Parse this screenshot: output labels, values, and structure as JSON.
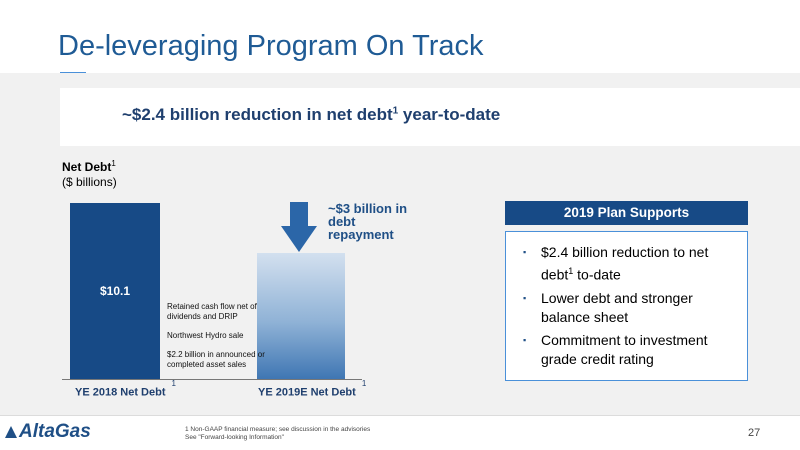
{
  "slide": {
    "title": "De-leveraging Program On Track",
    "headline": "~$2.4 billion reduction in net debt",
    "headline_tail": " year-to-date",
    "headline_sup": "1"
  },
  "chart_data": {
    "type": "bar",
    "categories": [
      "YE 2018 Net Debt",
      "YE 2019E Net Debt"
    ],
    "values": [
      10.1,
      7.2
    ],
    "data_labels": [
      "$10.1",
      ""
    ],
    "ylabel_title": "Net Debt",
    "ylabel_sup": "1",
    "ylabel_units": "($ billions)",
    "category_sups": [
      "1",
      "1"
    ],
    "bridge_notes": [
      "Retained cash flow net of dividends and DRIP",
      "Northwest Hydro sale",
      "$2.2 billion in announced or completed asset sales"
    ],
    "annotation": "~$3 billion in debt repayment",
    "colors": {
      "bar1": "#174a86",
      "bar2": "gradient-blue"
    }
  },
  "plan": {
    "header": "2019 Plan Supports",
    "items": [
      {
        "pre": "$2.4 billion reduction to net debt",
        "sup": "1",
        "post": " to-date"
      },
      {
        "pre": "Lower debt and stronger balance sheet",
        "sup": "",
        "post": ""
      },
      {
        "pre": "Commitment to investment grade credit rating",
        "sup": "",
        "post": ""
      }
    ]
  },
  "footer": {
    "logo": "AltaGas",
    "footnote_1": "1 Non-GAAP financial measure; see discussion in the advisories",
    "footnote_2": "See \"Forward-looking Information\"",
    "page_number": "27"
  },
  "colors": {
    "brand_blue": "#174a86",
    "title_blue": "#1f5b95",
    "accent": "#4a90d9"
  }
}
